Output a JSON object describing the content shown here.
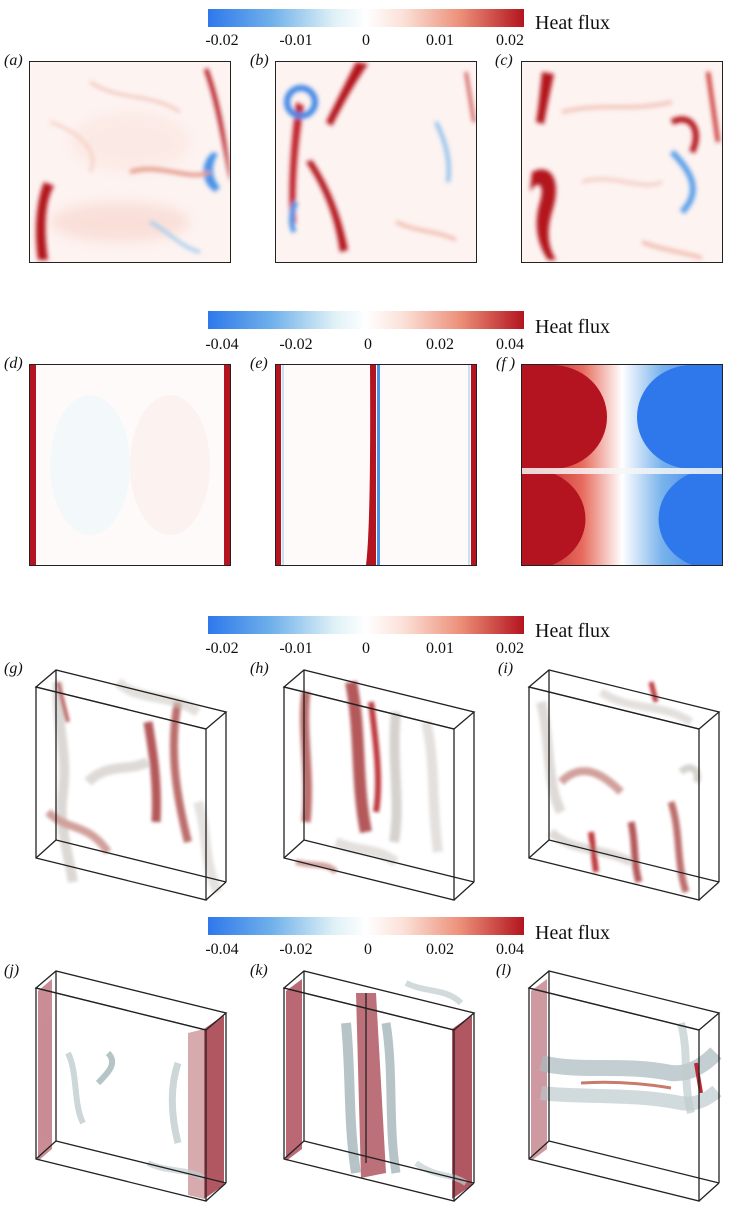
{
  "colorbars": [
    {
      "title": "Heat flux",
      "ticks": [
        "-0.02",
        "-0.01",
        "0",
        "0.01",
        "0.02"
      ]
    },
    {
      "title": "Heat flux",
      "ticks": [
        "-0.04",
        "-0.02",
        "0",
        "0.02",
        "0.04"
      ]
    },
    {
      "title": "Heat flux",
      "ticks": [
        "-0.02",
        "-0.01",
        "0",
        "0.01",
        "0.02"
      ]
    },
    {
      "title": "Heat flux",
      "ticks": [
        "-0.04",
        "-0.02",
        "0",
        "0.02",
        "0.04"
      ]
    }
  ],
  "panels": {
    "a": "(a)",
    "b": "(b)",
    "c": "(c)",
    "d": "(d)",
    "e": "(e)",
    "f": "(f )",
    "g": "(g)",
    "h": "(h)",
    "i": "(i)",
    "j": "(j)",
    "k": "(k)",
    "l": "(l)"
  },
  "colors": {
    "hot": "#b3141f",
    "cold": "#2e78ec",
    "neutral": "#ffffff"
  }
}
